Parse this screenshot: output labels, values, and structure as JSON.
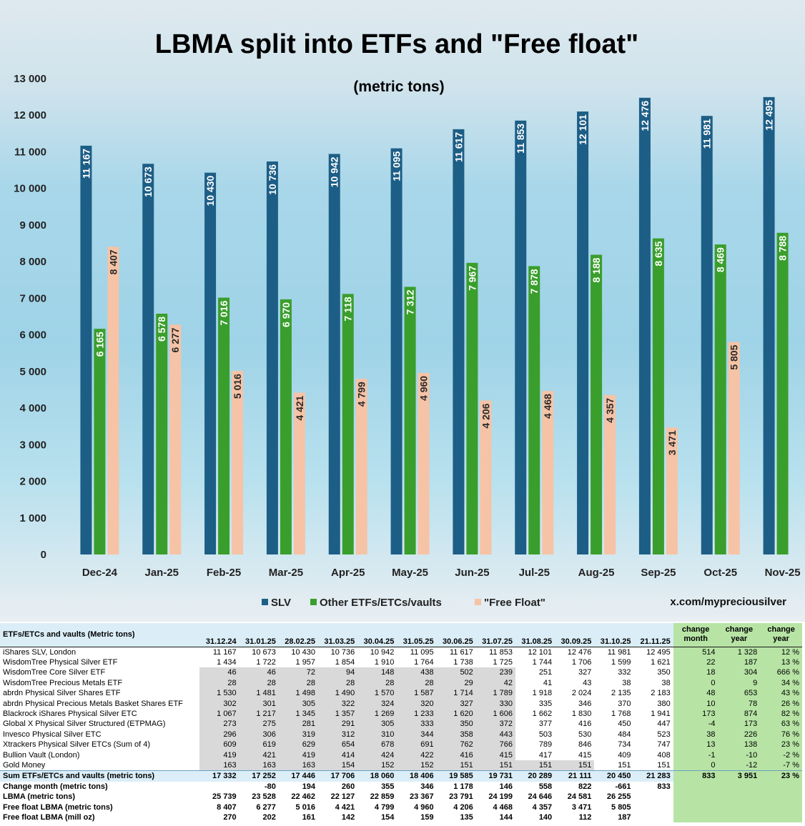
{
  "chart_data": {
    "type": "bar",
    "title": "LBMA split into ETFs and \"Free float\"",
    "subtitle": "(metric tons)",
    "categories": [
      "Dec-24",
      "Jan-25",
      "Feb-25",
      "Mar-25",
      "Apr-25",
      "May-25",
      "Jun-25",
      "Jul-25",
      "Aug-25",
      "Sep-25",
      "Oct-25",
      "Nov-25"
    ],
    "series": [
      {
        "name": "SLV",
        "color": "#1d5e86",
        "values": [
          11167,
          10673,
          10430,
          10736,
          10942,
          11095,
          11617,
          11853,
          12101,
          12476,
          11981,
          12495
        ],
        "labels": [
          "11 167",
          "10 673",
          "10 430",
          "10 736",
          "10 942",
          "11 095",
          "11 617",
          "11 853",
          "12 101",
          "12 476",
          "11 981",
          "12 495"
        ]
      },
      {
        "name": "Other ETFs/ETCs/vaults",
        "color": "#3a9e2c",
        "values": [
          6165,
          6578,
          7016,
          6970,
          7118,
          7312,
          7967,
          7878,
          8188,
          8635,
          8469,
          8788
        ],
        "labels": [
          "6 165",
          "6 578",
          "7 016",
          "6 970",
          "7 118",
          "7 312",
          "7 967",
          "7 878",
          "8 188",
          "8 635",
          "8 469",
          "8 788"
        ]
      },
      {
        "name": "\"Free Float\"",
        "color": "#f6c3a6",
        "values": [
          8407,
          6277,
          5016,
          4421,
          4799,
          4960,
          4206,
          4468,
          4357,
          3471,
          5805,
          null
        ],
        "labels": [
          "8 407",
          "6 277",
          "5 016",
          "4 421",
          "4 799",
          "4 960",
          "4 206",
          "4 468",
          "4 357",
          "3 471",
          "5 805",
          ""
        ]
      }
    ],
    "ylim": [
      0,
      13000
    ],
    "yticks": [
      0,
      1000,
      2000,
      3000,
      4000,
      5000,
      6000,
      7000,
      8000,
      9000,
      10000,
      11000,
      12000,
      13000
    ],
    "ytick_labels": [
      "0",
      "1 000",
      "2 000",
      "3 000",
      "4 000",
      "5 000",
      "6 000",
      "7 000",
      "8 000",
      "9 000",
      "10 000",
      "11 000",
      "12 000",
      "13 000"
    ],
    "legend_position": "bottom",
    "grid": false
  },
  "source": "x.com/mypreciousilver",
  "table": {
    "header_label": "ETFs/ETCs and vaults (Metric tons)",
    "dates": [
      "31.12.24",
      "31.01.25",
      "28.02.25",
      "31.03.25",
      "30.04.25",
      "31.05.25",
      "30.06.25",
      "31.07.25",
      "31.08.25",
      "30.09.25",
      "31.10.25",
      "21.11.25"
    ],
    "change_headers": [
      "change month",
      "change year",
      "change year"
    ],
    "rows": [
      {
        "name": "iShares SLV, London",
        "values": [
          "11 167",
          "10 673",
          "10 430",
          "10 736",
          "10 942",
          "11 095",
          "11 617",
          "11 853",
          "12 101",
          "12 476",
          "11 981",
          "12 495"
        ],
        "changes": [
          "514",
          "1 328",
          "12 %"
        ],
        "shaded": 0
      },
      {
        "name": "WisdomTree Physical Silver ETF",
        "values": [
          "1 434",
          "1 722",
          "1 957",
          "1 854",
          "1 910",
          "1 764",
          "1 738",
          "1 725",
          "1 744",
          "1 706",
          "1 599",
          "1 621"
        ],
        "changes": [
          "22",
          "187",
          "13 %"
        ],
        "shaded": 0
      },
      {
        "name": "WisdomTree Core Silver ETF",
        "values": [
          "46",
          "46",
          "72",
          "94",
          "148",
          "438",
          "502",
          "239",
          "251",
          "327",
          "332",
          "350"
        ],
        "changes": [
          "18",
          "304",
          "666 %"
        ],
        "shaded": 8
      },
      {
        "name": "WisdomTree Precious Metals ETF",
        "values": [
          "28",
          "28",
          "28",
          "28",
          "28",
          "28",
          "29",
          "42",
          "41",
          "43",
          "38",
          "38"
        ],
        "changes": [
          "0",
          "9",
          "34 %"
        ],
        "shaded": 8
      },
      {
        "name": "abrdn Physical Silver Shares ETF",
        "values": [
          "1 530",
          "1 481",
          "1 498",
          "1 490",
          "1 570",
          "1 587",
          "1 714",
          "1 789",
          "1 918",
          "2 024",
          "2 135",
          "2 183"
        ],
        "changes": [
          "48",
          "653",
          "43 %"
        ],
        "shaded": 8
      },
      {
        "name": "abrdn Physical Precious Metals Basket Shares ETF",
        "values": [
          "302",
          "301",
          "305",
          "322",
          "324",
          "320",
          "327",
          "330",
          "335",
          "346",
          "370",
          "380"
        ],
        "changes": [
          "10",
          "78",
          "26 %"
        ],
        "shaded": 8
      },
      {
        "name": "Blackrock iShares Physical Silver ETC",
        "values": [
          "1 067",
          "1 217",
          "1 345",
          "1 357",
          "1 269",
          "1 233",
          "1 620",
          "1 606",
          "1 662",
          "1 830",
          "1 768",
          "1 941"
        ],
        "changes": [
          "173",
          "874",
          "82 %"
        ],
        "shaded": 8
      },
      {
        "name": "Global X Physical Silver Structured (ETPMAG)",
        "values": [
          "273",
          "275",
          "281",
          "291",
          "305",
          "333",
          "350",
          "372",
          "377",
          "416",
          "450",
          "447"
        ],
        "changes": [
          "-4",
          "173",
          "63 %"
        ],
        "shaded": 8
      },
      {
        "name": "Invesco Physical Silver ETC",
        "values": [
          "296",
          "306",
          "319",
          "312",
          "310",
          "344",
          "358",
          "443",
          "503",
          "530",
          "484",
          "523"
        ],
        "changes": [
          "38",
          "226",
          "76 %"
        ],
        "shaded": 8
      },
      {
        "name": "Xtrackers Physical Silver ETCs (Sum of 4)",
        "values": [
          "609",
          "619",
          "629",
          "654",
          "678",
          "691",
          "762",
          "766",
          "789",
          "846",
          "734",
          "747"
        ],
        "changes": [
          "13",
          "138",
          "23 %"
        ],
        "shaded": 8
      },
      {
        "name": "Bullion Vault (London)",
        "values": [
          "419",
          "421",
          "419",
          "414",
          "424",
          "422",
          "416",
          "415",
          "417",
          "415",
          "409",
          "408"
        ],
        "changes": [
          "-1",
          "-10",
          "-2 %"
        ],
        "shaded": 8
      },
      {
        "name": "Gold Money",
        "values": [
          "163",
          "163",
          "163",
          "154",
          "152",
          "152",
          "151",
          "151",
          "151",
          "151",
          "151",
          "151"
        ],
        "changes": [
          "0",
          "-12",
          "-7 %"
        ],
        "shaded": 10
      }
    ],
    "sum_row": {
      "name": "Sum ETFs/ETCs and vaults (metric tons)",
      "values": [
        "17 332",
        "17 252",
        "17 446",
        "17 706",
        "18 060",
        "18 406",
        "19 585",
        "19 731",
        "20 289",
        "21 111",
        "20 450",
        "21 283"
      ],
      "changes": [
        "833",
        "3 951",
        "23 %"
      ]
    },
    "bottom_rows": [
      {
        "name": "Change month (metric tons)",
        "values": [
          "",
          "-80",
          "194",
          "260",
          "355",
          "346",
          "1 178",
          "146",
          "558",
          "822",
          "-661",
          "833"
        ]
      },
      {
        "name": "LBMA (metric tons)",
        "values": [
          "25 739",
          "23 528",
          "22 462",
          "22 127",
          "22 859",
          "23 367",
          "23 791",
          "24 199",
          "24 646",
          "24 581",
          "26 255",
          ""
        ]
      },
      {
        "name": "Free float LBMA (metric tons)",
        "values": [
          "8 407",
          "6 277",
          "5 016",
          "4 421",
          "4 799",
          "4 960",
          "4 206",
          "4 468",
          "4 357",
          "3 471",
          "5 805",
          ""
        ]
      },
      {
        "name": "Free float LBMA (mill oz)",
        "values": [
          "270",
          "202",
          "161",
          "142",
          "154",
          "159",
          "135",
          "144",
          "140",
          "112",
          "187",
          ""
        ]
      }
    ]
  }
}
